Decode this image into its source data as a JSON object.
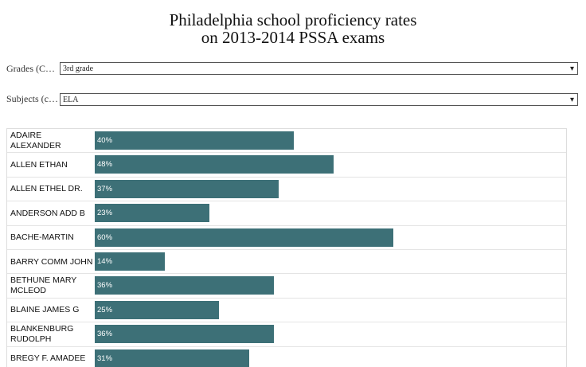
{
  "header": {
    "title": "Philadelphia school proficiency rates\non 2013-2014 PSSA exams"
  },
  "controls": [
    {
      "label": "Grades (C…",
      "value": "3rd grade"
    },
    {
      "label": "Subjects (c…",
      "value": "ELA"
    }
  ],
  "chart_data": {
    "type": "bar",
    "orientation": "horizontal",
    "color": "#3d7077",
    "categories": [
      "ADAIRE ALEXANDER",
      "ALLEN ETHAN",
      "ALLEN ETHEL DR.",
      "ANDERSON ADD B",
      "BACHE-MARTIN",
      "BARRY COMM JOHN",
      "BETHUNE MARY MCLEOD",
      "BLAINE JAMES G",
      "BLANKENBURG RUDOLPH",
      "BREGY F. AMADEE"
    ],
    "values": [
      40,
      48,
      37,
      23,
      60,
      14,
      36,
      25,
      36,
      31
    ],
    "value_labels": [
      "40%",
      "48%",
      "37%",
      "23%",
      "60%",
      "14%",
      "36%",
      "25%",
      "36%",
      "31%"
    ]
  }
}
